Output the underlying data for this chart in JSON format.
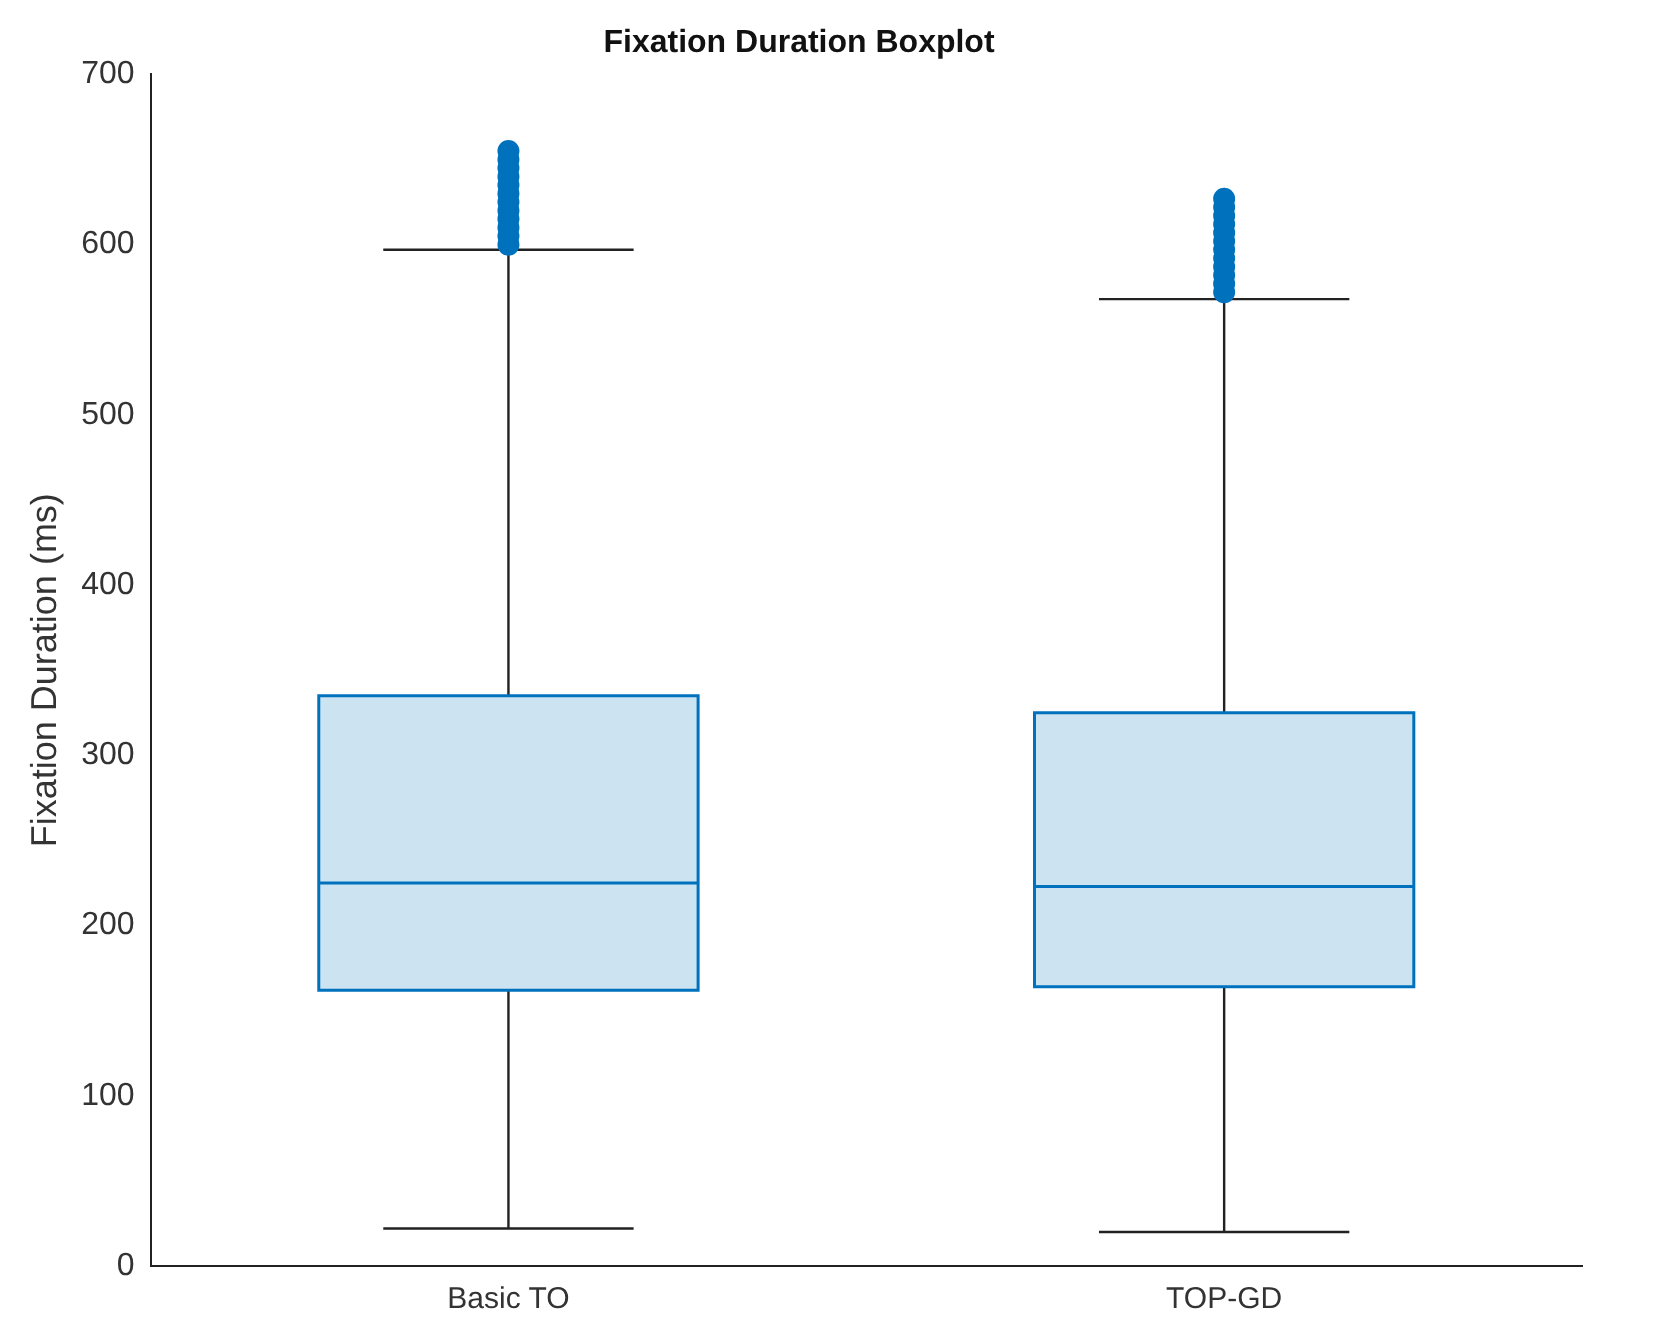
{
  "chart_data": {
    "type": "box",
    "title": "Fixation Duration Boxplot",
    "ylabel": "Fixation Duration (ms)",
    "categories": [
      "Basic TO",
      "TOP-GD"
    ],
    "color": "#0072bd",
    "marker": "circle",
    "boxes": [
      {
        "low": 22,
        "q1": 162,
        "median": 225,
        "q3": 335,
        "high": 597,
        "outliers": [
          600,
          605,
          610,
          615,
          620,
          625,
          630,
          635,
          640,
          645,
          650,
          655
        ]
      },
      {
        "low": 20,
        "q1": 164,
        "median": 223,
        "q3": 325,
        "high": 568,
        "outliers": [
          572,
          577,
          582,
          587,
          592,
          597,
          602,
          607,
          612,
          617,
          622,
          627
        ]
      }
    ],
    "ylim": [
      0,
      700
    ],
    "yticks": [
      0,
      100,
      200,
      300,
      400,
      500,
      600,
      700
    ]
  }
}
